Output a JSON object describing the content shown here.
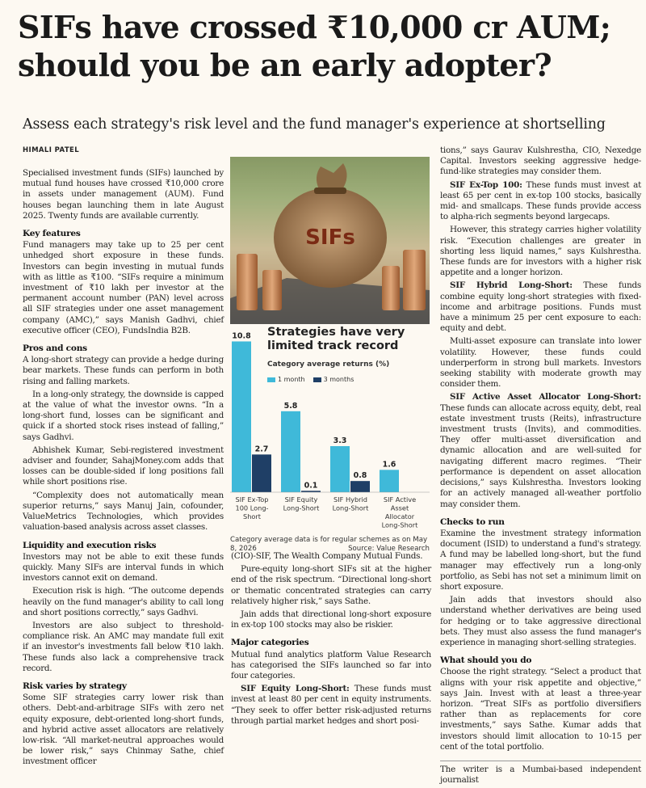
{
  "headline": {
    "line1": "SIFs have crossed ₹10,000 cr AUM;",
    "line2": "should you be an early adopter?"
  },
  "deck": "Assess each strategy's risk level and the fund manager's experience at shortselling",
  "byline": "HIMALI PATEL",
  "image": {
    "bag_label": "SIFs"
  },
  "col1": {
    "intro": "Specialised investment funds (SIFs) launched by mutual fund houses have crossed ₹10,000 crore in assets under management (AUM). Fund houses began launching them in late August 2025. Twenty funds are available currently.",
    "h_key": "Key features",
    "key_p1": "Fund managers may take up to 25 per cent unhedged short exposure in these funds. Investors can begin investing in mutual funds with as little as ₹100. “SIFs require a minimum investment of ₹10 lakh per investor at the permanent account number (PAN) level across all SIF strategies under one asset management company (AMC),” says Manish Gadhvi, chief executive officer (CEO), FundsIndia B2B.",
    "h_pros": "Pros and cons",
    "pros_p1": "A long-short strategy can provide a hedge during bear markets. These funds can perform in both rising and falling markets.",
    "pros_p2": "In a long-only strategy, the downside is capped at the value of what the investor owns. “In a long-short fund, losses can be significant and quick if a shorted stock rises instead of falling,” says Gadhvi.",
    "pros_p3": "Abhishek Kumar, Sebi-registered investment adviser and founder, SahajMoney.com adds that losses can be double-sided if long positions fall while short positions rise.",
    "pros_p4": "“Complexity does not automatically mean superior returns,” says Manuj Jain, cofounder, ValueMetrics Technologies, which provides valuation-based analysis across asset classes.",
    "h_liq": "Liquidity and execution risks",
    "liq_p1": "Investors may not be able to exit these funds quickly. Many SIFs are interval funds in which investors cannot exit on demand.",
    "liq_p2": "Execution risk is high. “The outcome depends heavily on the fund manager's ability to call long and short positions correctly,” says Gadhvi.",
    "liq_p3": "Investors are also subject to threshold-compliance risk. An AMC may mandate full exit if an investor's investments fall below ₹10 lakh. These funds also lack a comprehensive track record.",
    "h_risk": "Risk varies by strategy",
    "risk_p1": "Some SIF strategies carry lower risk than others. Debt-and-arbitrage SIFs with zero net equity exposure, debt-oriented long-short funds, and hybrid active asset allocators are relatively low-risk. “All market-neutral approaches would be lower risk,” says Chinmay Sathe, chief investment officer"
  },
  "col2": {
    "p1": "(CIO)-SIF, The Wealth Company Mutual Funds.",
    "p2": "Pure-equity long-short SIFs sit at the higher end of the risk spectrum. “Directional long-short or thematic concentrated strategies can carry relatively higher risk,” says Sathe.",
    "p3": "Jain adds that directional long-short exposure in ex-top 100 stocks may also be riskier.",
    "h_major": "Major categories",
    "p4": "Mutual fund analytics platform Value Research has categorised the SIFs launched so far into four categories.",
    "p5_lead": "SIF Equity Long-Short:",
    "p5": " These funds must invest at least 80 per cent in equity instruments. “They seek to offer better risk-adjusted returns through partial market hedges and short posi-"
  },
  "col3": {
    "p1": "tions,” says Gaurav Kulshrestha, CIO, Nexedge Capital. Investors seeking aggressive hedge-fund-like strategies may consider them.",
    "p2_lead": "SIF Ex-Top 100:",
    "p2": " These funds must invest at least 65 per cent in ex-top 100 stocks, basically mid- and smallcaps. These funds provide access to alpha-rich segments beyond largecaps.",
    "p3": "However, this strategy carries higher volatility risk. “Execution challenges are greater in shorting less liquid names,” says Kulshrestha. These funds are for investors with a higher risk appetite and a longer horizon.",
    "p4_lead": "SIF Hybrid Long-Short:",
    "p4": " These funds combine equity long-short strategies with fixed-income and arbitrage positions. Funds must have a minimum 25 per cent exposure to each: equity and debt.",
    "p5": "Multi-asset exposure can translate into lower volatility. However, these funds could underperform in strong bull markets. Investors seeking stability with moderate growth may consider them.",
    "p6_lead": "SIF Active Asset Allocator Long-Short:",
    "p6": " These funds can allocate across equity, debt, real estate investment trusts (Reits), infrastructure investment trusts (Invits), and commodities. They offer multi-asset diversification and dynamic allocation and are well-suited for navigating different macro regimes. “Their performance is dependent on asset allocation decisions,” says Kulshrestha. Investors looking for an actively managed all-weather portfolio may consider them.",
    "h_checks": "Checks to run",
    "p7": "Examine the investment strategy information document (ISID) to understand a fund's strategy. A fund may be labelled long-short, but the fund manager may effectively run a long-only portfolio, as Sebi has not set a minimum limit on short exposure.",
    "p8": "Jain adds that investors should also understand whether derivatives are being used for hedging or to take aggressive directional bets. They must also assess the fund manager's experience in managing short-selling strategies.",
    "h_what": "What should you do",
    "p9": "Choose the right strategy. “Select a product that aligns with your risk appetite and objective,” says Jain. Invest with at least a three-year horizon. “Treat SIFs as portfolio diversifiers rather than as replacements for core investments,” says Sathe. Kumar adds that investors should limit allocation to 10-15 per cent of the total portfolio.",
    "footer": "The writer is a Mumbai-based independent journalist"
  },
  "chart_data": {
    "type": "bar",
    "title": "Strategies have very limited track record",
    "subtitle": "Category average returns (%)",
    "categories": [
      "SIF Ex-Top 100 Long-Short",
      "SIF Equity Long-Short",
      "SIF Hybrid Long-Short",
      "SIF Active Asset Allocator Long-Short"
    ],
    "category_lines": [
      [
        "SIF Ex-Top",
        "100 Long-",
        "Short"
      ],
      [
        "SIF Equity",
        "Long-Short"
      ],
      [
        "SIF Hybrid",
        "Long-Short"
      ],
      [
        "SIF Active",
        "Asset",
        "Allocator",
        "Long-Short"
      ]
    ],
    "series": [
      {
        "name": "1 month",
        "values": [
          10.8,
          5.8,
          3.3,
          1.6
        ],
        "labels": [
          "10.8",
          "5.8",
          "3.3",
          "1.6"
        ],
        "color": "#3fb9d9"
      },
      {
        "name": "3 months",
        "values": [
          2.7,
          0.1,
          0.8,
          null
        ],
        "labels": [
          "2.7",
          "0.1",
          "0.8",
          ""
        ],
        "color": "#1f3f66"
      }
    ],
    "ylim": [
      0,
      11
    ],
    "grid": false,
    "legend": "top-left",
    "note": "Category average data is for regular schemes as on May 8, 2026",
    "source": "Source: Value Research"
  }
}
